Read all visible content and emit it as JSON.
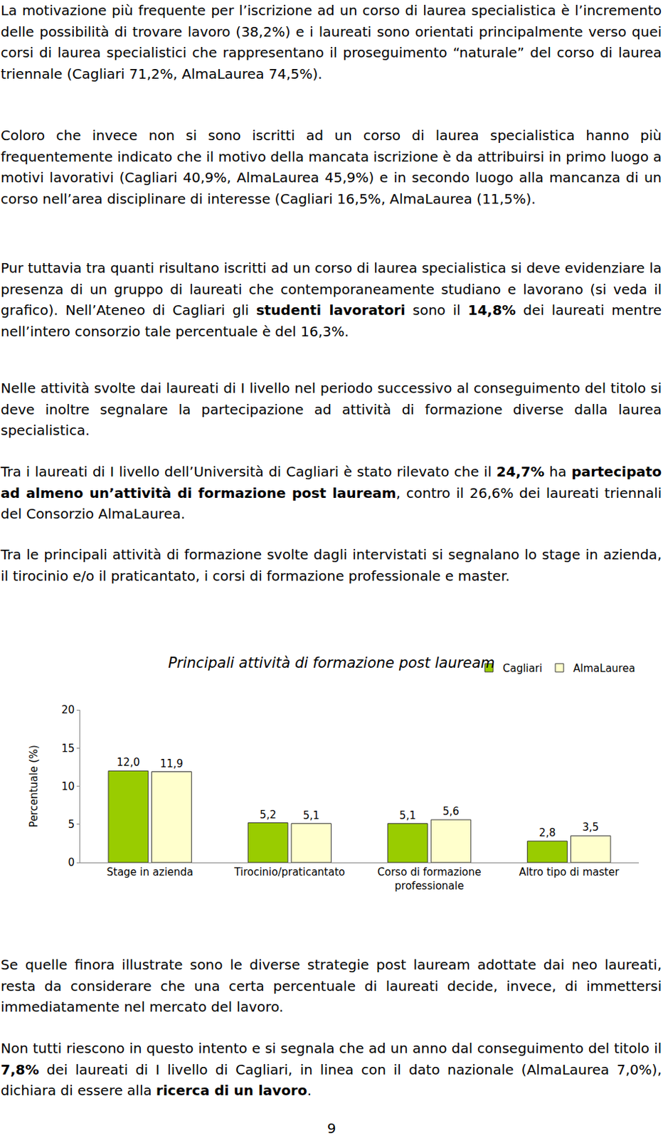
{
  "paragraphs_before": [
    [
      {
        "text": "La motivazione più frequente per l’iscrizione ad un corso di laurea specialistica è l’incremento delle possibilità di trovare lavoro (38,2%) e i laureati sono orientati principalmente verso quei corsi di laurea specialistici che rappresentano il proseguimento “naturale” del corso di laurea triennale (Cagliari 71,2%, AlmaLaurea 74,5%)."
      }
    ],
    [
      {
        "text": "Coloro che invece non si sono iscritti ad un corso di laurea specialistica hanno più frequentemente indicato che il motivo della mancata iscrizione è da attribuirsi in primo luogo a motivi lavorativi (Cagliari 40,9%, AlmaLaurea 45,9%) e in secondo luogo alla mancanza di un corso nell’area disciplinare di interesse (Cagliari 16,5%, AlmaLaurea (11,5%)."
      }
    ],
    [
      {
        "text": "Pur tuttavia tra quanti risultano iscritti ad un corso di laurea specialistica si deve evidenziare la presenza di un gruppo di laureati che contemporaneamente studiano e lavorano (si veda il grafico). Nell’Ateneo di Cagliari gli "
      },
      {
        "text": "studenti lavoratori",
        "bold": true
      },
      {
        "text": " sono il "
      },
      {
        "text": "14,8%",
        "bold": true
      },
      {
        "text": " dei laureati mentre nell’intero consorzio tale percentuale è del 16,3%."
      }
    ],
    [
      {
        "text": "Nelle attività svolte dai laureati di I livello nel periodo successivo al conseguimento del titolo si deve inoltre segnalare la partecipazione ad attività di formazione diverse dalla laurea specialistica."
      }
    ],
    [
      {
        "text": "Tra i laureati di I livello dell’Università di Cagliari è stato rilevato che il "
      },
      {
        "text": "24,7%",
        "bold": true
      },
      {
        "text": " ha "
      },
      {
        "text": "partecipato ad almeno un’attività di formazione post lauream",
        "bold": true
      },
      {
        "text": ", contro il 26,6% dei laureati triennali del Consorzio AlmaLaurea."
      }
    ],
    [
      {
        "text": "Tra le principali attività di formazione svolte dagli intervistati si segnalano lo stage in azienda, il tirocinio e/o il praticantato, i corsi di formazione professionale e master."
      }
    ]
  ],
  "chart_data": {
    "type": "bar",
    "title": "Principali attività di formazione post lauream",
    "y_label": "Percentuale (%)",
    "categories": [
      "Stage in azienda",
      "Tirocinio/praticantato",
      "Corso di formazione professionale",
      "Altro tipo di master"
    ],
    "series": [
      {
        "name": "Cagliari",
        "color": "#99cc00",
        "values": [
          12.0,
          5.2,
          5.1,
          2.8
        ],
        "value_labels": [
          "12,0",
          "5,2",
          "5,1",
          "2,8"
        ]
      },
      {
        "name": "AlmaLaurea",
        "color": "#ffffcc",
        "values": [
          11.9,
          5.1,
          5.6,
          3.5
        ],
        "value_labels": [
          "11,9",
          "5,1",
          "5,6",
          "3,5"
        ]
      }
    ],
    "ylim": [
      0,
      20
    ],
    "yticks": [
      0,
      5,
      10,
      15,
      20
    ],
    "grid": false,
    "legend": "top-right",
    "data_labels": true
  },
  "paragraphs_after": [
    [
      {
        "text": "Se quelle finora illustrate sono le diverse strategie post lauream adottate dai neo laureati, resta da considerare che una certa percentuale di laureati decide, invece, di immettersi immediatamente nel mercato del lavoro."
      }
    ],
    [
      {
        "text": "Non tutti riescono in questo intento e si segnala che ad un anno dal conseguimento del titolo il "
      },
      {
        "text": "7,8%",
        "bold": true
      },
      {
        "text": " dei laureati di I livello di Cagliari, in linea con il dato nazionale (AlmaLaurea 7,0%), dichiara di essere alla "
      },
      {
        "text": "ricerca di un lavoro",
        "bold": true
      },
      {
        "text": "."
      }
    ]
  ],
  "page_number": "9"
}
